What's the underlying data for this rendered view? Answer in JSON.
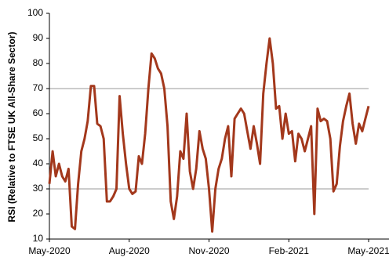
{
  "chart_data": {
    "type": "line",
    "y_label": "RSI (Relative to FTSE UK All-Share Sector)",
    "categories": [
      "May-2020",
      null,
      null,
      null,
      null,
      null,
      null,
      null,
      null,
      null,
      null,
      null,
      null,
      null,
      null,
      null,
      null,
      null,
      null,
      null,
      null,
      null,
      null,
      null,
      null,
      "Aug-2020",
      null,
      null,
      null,
      null,
      null,
      null,
      null,
      null,
      null,
      null,
      null,
      null,
      null,
      null,
      null,
      null,
      null,
      null,
      null,
      null,
      null,
      null,
      null,
      null,
      "Nov-2020",
      null,
      null,
      null,
      null,
      null,
      null,
      null,
      null,
      null,
      null,
      null,
      null,
      null,
      null,
      null,
      null,
      null,
      null,
      null,
      null,
      null,
      null,
      null,
      null,
      "Feb-2021",
      null,
      null,
      null,
      null,
      null,
      null,
      null,
      null,
      null,
      null,
      null,
      null,
      null,
      null,
      null,
      null,
      null,
      null,
      null,
      null,
      null,
      null,
      null,
      null,
      "May-2021"
    ],
    "series": [
      {
        "color": "#a3381c",
        "values": [
          32,
          45,
          35,
          40,
          35,
          33,
          38,
          15,
          14,
          32,
          45,
          50,
          57,
          71,
          71,
          56,
          55,
          50,
          25,
          25,
          27,
          30,
          67,
          52,
          40,
          30,
          28,
          29,
          43,
          40,
          52,
          70,
          84,
          82,
          78,
          76,
          70,
          55,
          25,
          18,
          27,
          45,
          42,
          60,
          37,
          30,
          38,
          53,
          46,
          42,
          30,
          13,
          30,
          38,
          42,
          50,
          55,
          35,
          58,
          60,
          62,
          60,
          53,
          46,
          55,
          48,
          40,
          68,
          80,
          90,
          80,
          62,
          63,
          50,
          60,
          52,
          53,
          41,
          52,
          50,
          45,
          50,
          55,
          20,
          62,
          57,
          58,
          57,
          50,
          29,
          32,
          47,
          57,
          63,
          68,
          56,
          48,
          56,
          53,
          58,
          63
        ]
      }
    ],
    "ylim": [
      10,
      100
    ],
    "yticks": [
      10,
      20,
      30,
      40,
      50,
      60,
      70,
      80,
      90,
      100
    ],
    "ygrid": [
      30,
      70
    ]
  }
}
